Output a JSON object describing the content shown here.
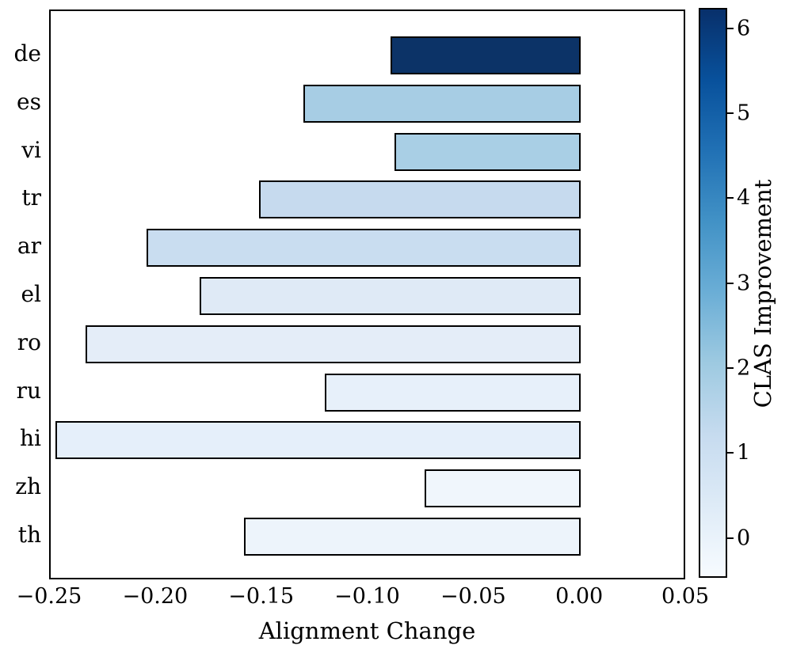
{
  "chart_data": {
    "type": "bar",
    "orientation": "horizontal",
    "title": "",
    "xlabel": "Alignment Change",
    "xlim": [
      -0.25,
      0.05
    ],
    "grid": false,
    "background": "#ffffff",
    "bar_edge_color": "#000000",
    "categories": [
      "de",
      "es",
      "vi",
      "tr",
      "ar",
      "el",
      "ro",
      "ru",
      "hi",
      "zh",
      "th"
    ],
    "series": [
      {
        "name": "Alignment Change",
        "values": [
          -0.089,
          -0.13,
          -0.087,
          -0.151,
          -0.204,
          -0.179,
          -0.233,
          -0.12,
          -0.247,
          -0.073,
          -0.158
        ]
      }
    ],
    "bar_colors": [
      "#0c3367",
      "#a7cde4",
      "#a9cfe5",
      "#c6daee",
      "#c9ddf0",
      "#dfeaf6",
      "#e4edf8",
      "#e7f0fa",
      "#e5effa",
      "#f0f6fc",
      "#edf4fb"
    ],
    "clas_improvement_estimates": [
      6.2,
      2.0,
      1.9,
      1.2,
      1.1,
      0.4,
      0.2,
      0.1,
      0.15,
      -0.3,
      -0.2
    ],
    "xticks": {
      "values": [
        -0.25,
        -0.2,
        -0.15,
        -0.1,
        -0.05,
        0.0,
        0.05
      ],
      "labels": [
        "−0.25",
        "−0.20",
        "−0.15",
        "−0.10",
        "−0.05",
        "0.00",
        "0.05"
      ]
    },
    "colorbar": {
      "label": "CLAS Improvement",
      "colormap": "Blues",
      "range": [
        -0.47,
        6.24
      ],
      "tick_values": [
        0,
        1,
        2,
        3,
        4,
        5,
        6
      ],
      "tick_labels": [
        "0",
        "1",
        "2",
        "3",
        "4",
        "5",
        "6"
      ],
      "gradient_stops_bottom_to_top": [
        "#f7fbff",
        "#deebf7",
        "#c6dbef",
        "#9ecae1",
        "#6baed6",
        "#4292c6",
        "#2171b5",
        "#08519c",
        "#08306b"
      ]
    }
  }
}
